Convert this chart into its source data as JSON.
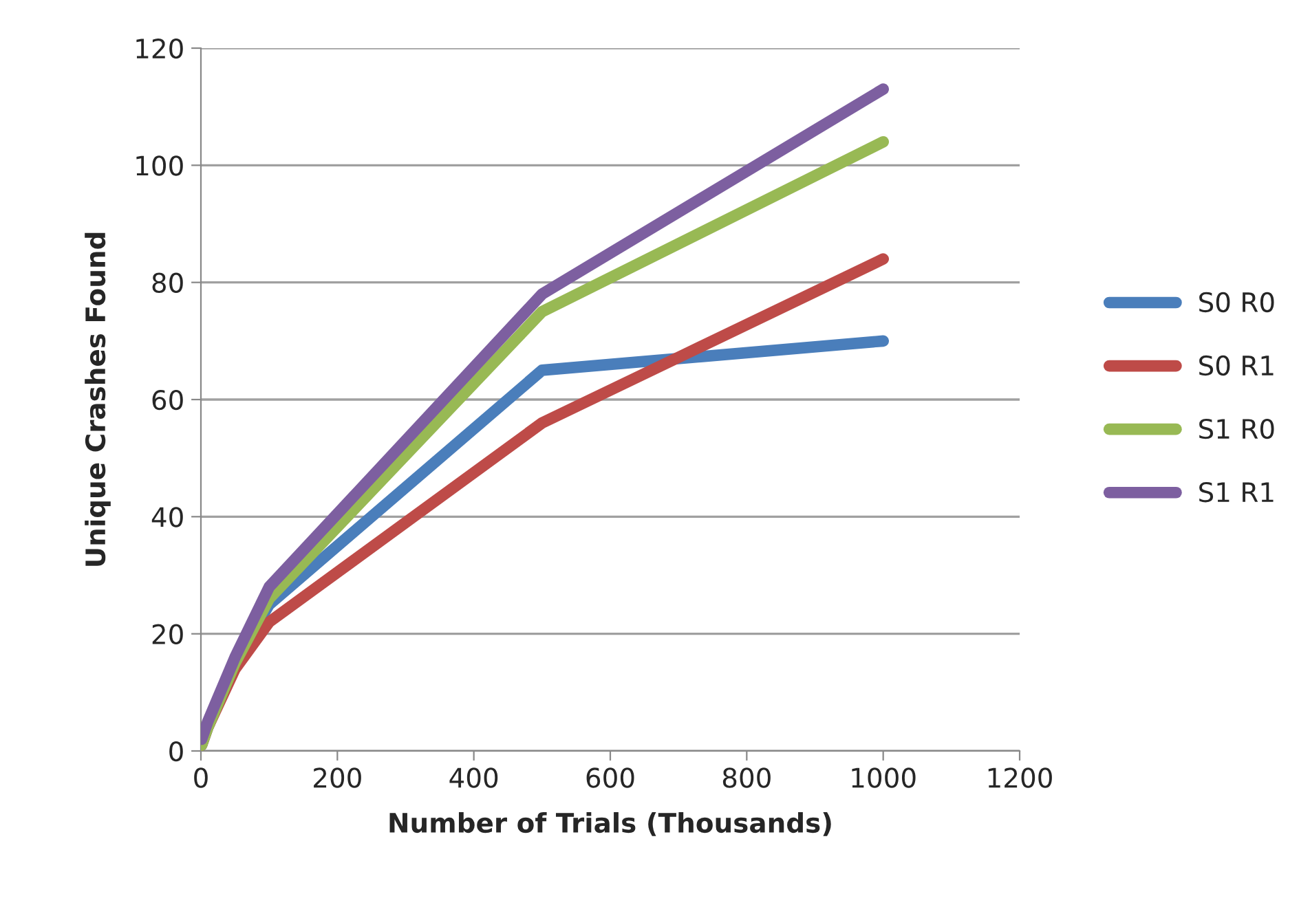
{
  "chart_data": {
    "type": "line",
    "xlabel": "Number of Trials (Thousands)",
    "ylabel": "Unique Crashes Found",
    "x": [
      1,
      10,
      50,
      100,
      500,
      1000
    ],
    "series": [
      {
        "name": "S0 R0",
        "color": "#4a7ebb",
        "values": [
          1,
          4,
          15,
          25,
          65,
          70
        ]
      },
      {
        "name": "S0 R1",
        "color": "#be4b48",
        "values": [
          1,
          4,
          14,
          22,
          56,
          84
        ]
      },
      {
        "name": "S1 R0",
        "color": "#98b954",
        "values": [
          1,
          4,
          15,
          26,
          75,
          104
        ]
      },
      {
        "name": "S1 R1",
        "color": "#7d5fa0",
        "values": [
          2,
          5,
          16,
          28,
          78,
          113
        ]
      }
    ],
    "xlim": [
      0,
      1200
    ],
    "xticks": [
      0,
      200,
      400,
      600,
      800,
      1000,
      1200
    ],
    "ylim": [
      0,
      120
    ],
    "yticks": [
      0,
      20,
      40,
      60,
      80,
      100,
      120
    ],
    "grid": "y",
    "legend": "right",
    "marker": "none",
    "line_style": "solid"
  }
}
